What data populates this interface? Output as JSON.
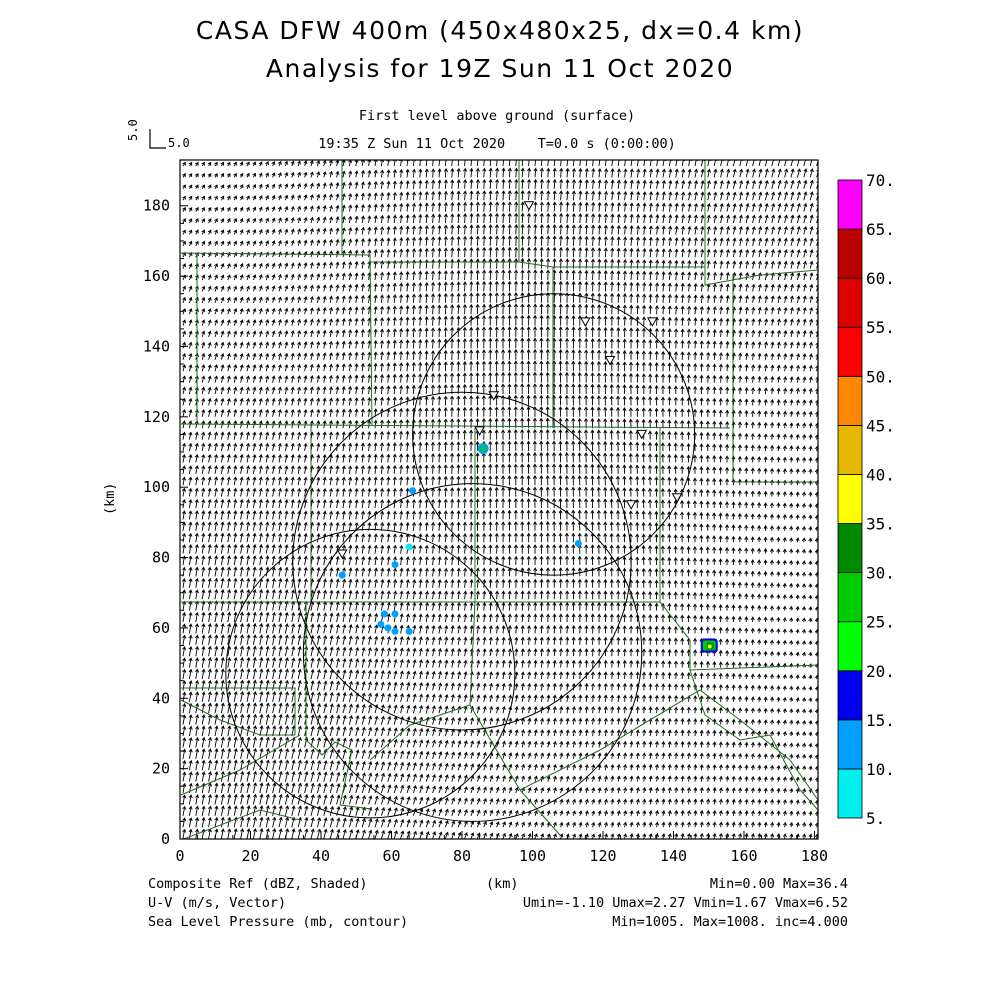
{
  "header": {
    "title_line1": "CASA DFW 400m (450x480x25, dx=0.4 km)",
    "title_line2": "Analysis for 19Z Sun 11 Oct 2020",
    "level": "First level above ground (surface)",
    "time": "19:35 Z Sun 11 Oct 2020    T=0.0 s (0:00:00)",
    "ref_vector_y": "5.0",
    "ref_vector_x": "5.0"
  },
  "chart_data": {
    "type": "scatter",
    "description_fields": "composite reflectivity shaded, wind vectors, sea level pressure contours, radar rings",
    "xlabel": "(km)",
    "ylabel": "(km)",
    "xlim": [
      0,
      181
    ],
    "ylim": [
      0,
      193
    ],
    "x_ticks": [
      0,
      20,
      40,
      60,
      80,
      100,
      120,
      140,
      160,
      180
    ],
    "y_ticks": [
      0,
      20,
      40,
      60,
      80,
      100,
      120,
      140,
      160,
      180
    ],
    "radar_rings": [
      {
        "x": 80,
        "y": 79,
        "r": 48
      },
      {
        "x": 106,
        "y": 115,
        "r": 40
      },
      {
        "x": 83,
        "y": 53,
        "r": 48
      },
      {
        "x": 54,
        "y": 47,
        "r": 41
      }
    ],
    "radar_sites": [
      {
        "x": 99,
        "y": 180
      },
      {
        "x": 115,
        "y": 147
      },
      {
        "x": 134,
        "y": 147
      },
      {
        "x": 122,
        "y": 136
      },
      {
        "x": 89,
        "y": 126
      },
      {
        "x": 85,
        "y": 116
      },
      {
        "x": 131,
        "y": 115
      },
      {
        "x": 128,
        "y": 95
      },
      {
        "x": 141,
        "y": 97
      },
      {
        "x": 46,
        "y": 81
      }
    ],
    "echoes": [
      {
        "x": 86,
        "y": 111,
        "dbz": 14
      },
      {
        "x": 66,
        "y": 99,
        "dbz": 12
      },
      {
        "x": 113,
        "y": 84,
        "dbz": 12
      },
      {
        "x": 46,
        "y": 75,
        "dbz": 10
      },
      {
        "x": 61,
        "y": 78,
        "dbz": 10
      },
      {
        "x": 65,
        "y": 83,
        "dbz": 8
      },
      {
        "x": 58,
        "y": 64,
        "dbz": 12
      },
      {
        "x": 57,
        "y": 61,
        "dbz": 12
      },
      {
        "x": 59,
        "y": 60,
        "dbz": 10
      },
      {
        "x": 61,
        "y": 64,
        "dbz": 10
      },
      {
        "x": 61,
        "y": 59,
        "dbz": 10
      },
      {
        "x": 65,
        "y": 59,
        "dbz": 10
      },
      {
        "x": 150,
        "y": 55,
        "dbz": 36
      }
    ],
    "wind_summary": {
      "u_min": -1.1,
      "u_max": 2.27,
      "v_min": 1.67,
      "v_max": 6.52
    },
    "colorbar": {
      "labels": [
        "5.",
        "10.",
        "15.",
        "20.",
        "25.",
        "30.",
        "35.",
        "40.",
        "45.",
        "50.",
        "55.",
        "60.",
        "65.",
        "70."
      ],
      "colors": [
        "#00eeee",
        "#00a0ff",
        "#0000ee",
        "#00ff00",
        "#00cc00",
        "#008800",
        "#ffff00",
        "#e6b800",
        "#ff8800",
        "#ff0000",
        "#dd0000",
        "#bb0000",
        "#ff00ff"
      ]
    }
  },
  "footer": {
    "left1": "Composite Ref (dBZ, Shaded)",
    "left2": "U-V (m/s, Vector)",
    "left3": "Sea Level Pressure (mb, contour)",
    "center1": "(km)",
    "right1": "Min=0.00 Max=36.4",
    "right2": "Umin=-1.10 Umax=2.27 Vmin=1.67 Vmax=6.52",
    "right3": "Min=1005. Max=1008. inc=4.000"
  }
}
